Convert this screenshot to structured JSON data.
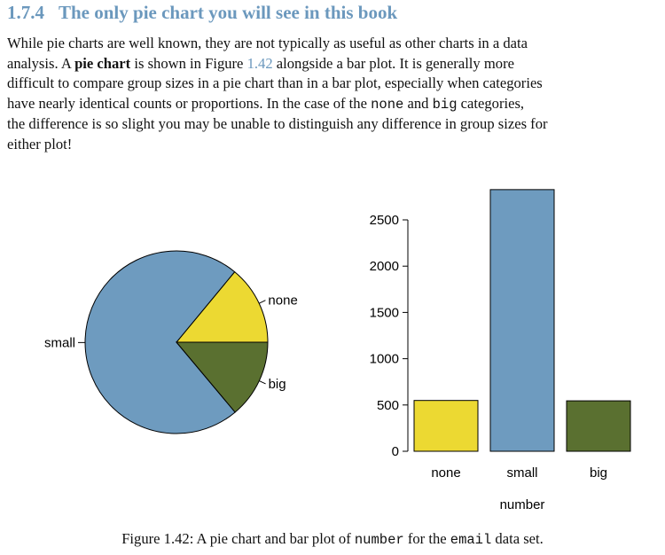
{
  "section": {
    "number": "1.7.4",
    "title": "The only pie chart you will see in this book"
  },
  "paragraph": {
    "line1": "While pie charts are well known, they are not typically as useful as other charts in a data",
    "line2_a": "analysis.  A ",
    "line2_bold": "pie chart",
    "line2_b": " is shown in Figure ",
    "line2_ref": "1.42",
    "line2_c": " alongside a bar plot.  It is generally more",
    "line3": "difficult to compare group sizes in a pie chart than in a bar plot, especially when categories",
    "line4": "have nearly identical counts or proportions.  In the case of the none and big categories,",
    "line4_a": "have nearly identical counts or proportions.  In the case of the ",
    "line4_code1": "none",
    "line4_b": " and ",
    "line4_code2": "big",
    "line4_c": " categories,",
    "line5": "the difference is so slight you may be unable to distinguish any difference in group sizes for",
    "line6": "either plot!"
  },
  "caption": {
    "a": "Figure 1.42:  A pie chart and bar plot of ",
    "code1": "number",
    "b": " for the ",
    "code2": "email",
    "c": " data set."
  },
  "colors": {
    "none": "#ecd932",
    "small": "#6e9bbf",
    "big": "#5a7030",
    "heading": "#6b98bd"
  },
  "chart_data": [
    {
      "type": "pie",
      "categories": [
        "none",
        "small",
        "big"
      ],
      "values": [
        549,
        2827,
        545
      ]
    },
    {
      "type": "bar",
      "categories": [
        "none",
        "small",
        "big"
      ],
      "values": [
        549,
        2827,
        545
      ],
      "xlabel": "number",
      "ylabel": "",
      "ylim": [
        0,
        2900
      ],
      "yticks": [
        0,
        500,
        1000,
        1500,
        2000,
        2500
      ]
    }
  ]
}
